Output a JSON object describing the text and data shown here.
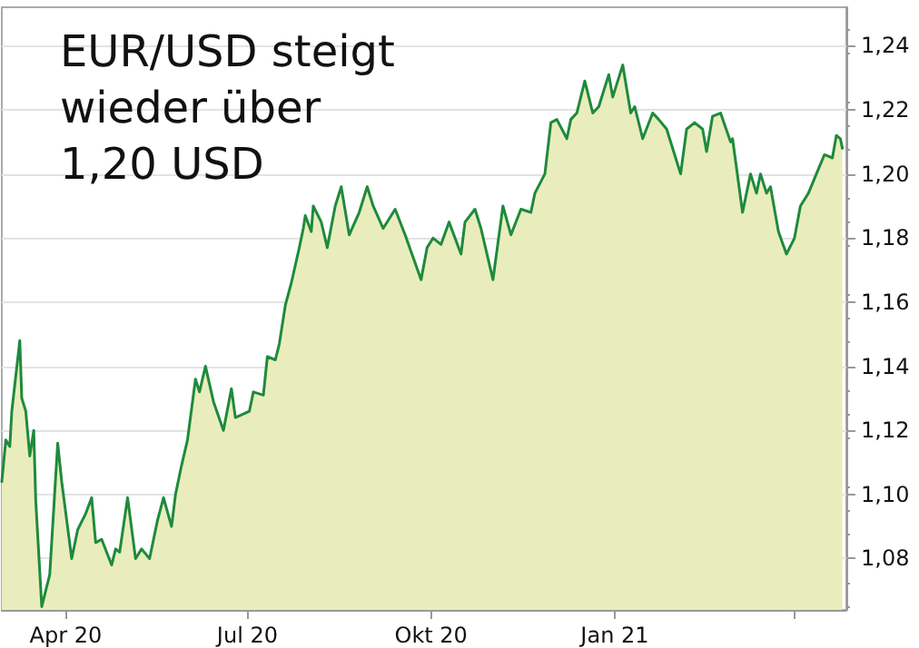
{
  "chart_data": {
    "type": "area",
    "title": "EUR/USD steigt wieder über 1,20 USD",
    "x": [
      "2020-02-29",
      "2020-03-02",
      "2020-03-04",
      "2020-03-05",
      "2020-03-09",
      "2020-03-10",
      "2020-03-12",
      "2020-03-14",
      "2020-03-16",
      "2020-03-17",
      "2020-03-20",
      "2020-03-24",
      "2020-03-28",
      "2020-03-30",
      "2020-04-04",
      "2020-04-07",
      "2020-04-11",
      "2020-04-14",
      "2020-04-16",
      "2020-04-19",
      "2020-04-24",
      "2020-04-26",
      "2020-04-28",
      "2020-05-02",
      "2020-05-06",
      "2020-05-09",
      "2020-05-13",
      "2020-05-17",
      "2020-05-20",
      "2020-05-24",
      "2020-05-26",
      "2020-05-29",
      "2020-06-01",
      "2020-06-05",
      "2020-06-07",
      "2020-06-10",
      "2020-06-14",
      "2020-06-19",
      "2020-06-23",
      "2020-06-25",
      "2020-07-02",
      "2020-07-04",
      "2020-07-09",
      "2020-07-11",
      "2020-07-15",
      "2020-07-17",
      "2020-07-20",
      "2020-07-23",
      "2020-07-27",
      "2020-07-29",
      "2020-07-30",
      "2020-08-02",
      "2020-08-03",
      "2020-08-07",
      "2020-08-10",
      "2020-08-14",
      "2020-08-17",
      "2020-08-21",
      "2020-08-26",
      "2020-08-30",
      "2020-09-02",
      "2020-09-07",
      "2020-09-13",
      "2020-09-18",
      "2020-09-22",
      "2020-09-26",
      "2020-09-29",
      "2020-10-02",
      "2020-10-06",
      "2020-10-10",
      "2020-10-16",
      "2020-10-18",
      "2020-10-23",
      "2020-10-26",
      "2020-11-01",
      "2020-11-06",
      "2020-11-10",
      "2020-11-15",
      "2020-11-20",
      "2020-11-22",
      "2020-11-27",
      "2020-11-30",
      "2020-12-03",
      "2020-12-08",
      "2020-12-10",
      "2020-12-13",
      "2020-12-17",
      "2020-12-21",
      "2020-12-24",
      "2020-12-29",
      "2020-12-31",
      "2021-01-05",
      "2021-01-09",
      "2021-01-11",
      "2021-01-15",
      "2021-01-20",
      "2021-01-23",
      "2021-01-27",
      "2021-01-31",
      "2021-02-03",
      "2021-02-06",
      "2021-02-10",
      "2021-02-14",
      "2021-02-16",
      "2021-02-19",
      "2021-02-23",
      "2021-02-28",
      "2021-03-01",
      "2021-03-06",
      "2021-03-10",
      "2021-03-13",
      "2021-03-15",
      "2021-03-18",
      "2021-03-20",
      "2021-03-24",
      "2021-03-28",
      "2021-04-01",
      "2021-04-04",
      "2021-04-08",
      "2021-04-12",
      "2021-04-16",
      "2021-04-20",
      "2021-04-22",
      "2021-04-24",
      "2021-04-25"
    ],
    "series": [
      {
        "color": "#1f8a3c",
        "values": [
          1.104,
          1.117,
          1.115,
          1.126,
          1.148,
          1.13,
          1.126,
          1.112,
          1.12,
          1.098,
          1.065,
          1.075,
          1.116,
          1.104,
          1.08,
          1.089,
          1.094,
          1.099,
          1.085,
          1.086,
          1.078,
          1.083,
          1.082,
          1.099,
          1.08,
          1.083,
          1.08,
          1.092,
          1.099,
          1.09,
          1.1,
          1.109,
          1.117,
          1.136,
          1.132,
          1.14,
          1.129,
          1.12,
          1.133,
          1.124,
          1.126,
          1.132,
          1.131,
          1.143,
          1.142,
          1.147,
          1.159,
          1.166,
          1.177,
          1.183,
          1.187,
          1.182,
          1.19,
          1.185,
          1.177,
          1.19,
          1.196,
          1.181,
          1.188,
          1.196,
          1.19,
          1.183,
          1.189,
          1.181,
          1.174,
          1.167,
          1.177,
          1.18,
          1.178,
          1.185,
          1.175,
          1.185,
          1.189,
          1.183,
          1.167,
          1.19,
          1.181,
          1.189,
          1.188,
          1.194,
          1.2,
          1.216,
          1.217,
          1.211,
          1.217,
          1.219,
          1.229,
          1.219,
          1.221,
          1.231,
          1.224,
          1.234,
          1.219,
          1.221,
          1.211,
          1.219,
          1.217,
          1.214,
          1.206,
          1.2,
          1.214,
          1.216,
          1.214,
          1.207,
          1.218,
          1.219,
          1.21,
          1.211,
          1.188,
          1.2,
          1.194,
          1.2,
          1.194,
          1.196,
          1.182,
          1.175,
          1.18,
          1.19,
          1.194,
          1.2,
          1.206,
          1.205,
          1.212,
          1.211,
          1.208
        ]
      }
    ],
    "xlim": [
      "2020-02-29",
      "2021-04-27"
    ],
    "xticks": [
      {
        "value": "2020-04-01",
        "label": "Apr 20"
      },
      {
        "value": "2020-07-01",
        "label": "Jul 20"
      },
      {
        "value": "2020-10-01",
        "label": "Okt 20"
      },
      {
        "value": "2021-01-01",
        "label": "Jan 21"
      },
      {
        "value": "2021-04-01",
        "label": null
      }
    ],
    "ylim": [
      1.064,
      1.252
    ],
    "yticks": [
      {
        "value": 1.08,
        "label": "1,08"
      },
      {
        "value": 1.1,
        "label": "1,10"
      },
      {
        "value": 1.12,
        "label": "1,12"
      },
      {
        "value": 1.14,
        "label": "1,14"
      },
      {
        "value": 1.16,
        "label": "1,16"
      },
      {
        "value": 1.18,
        "label": "1,18"
      },
      {
        "value": 1.2,
        "label": "1,20"
      },
      {
        "value": 1.22,
        "label": "1,22"
      },
      {
        "value": 1.24,
        "label": "1,24"
      }
    ],
    "grid": "y",
    "marker": "none",
    "line_style": "solid"
  }
}
